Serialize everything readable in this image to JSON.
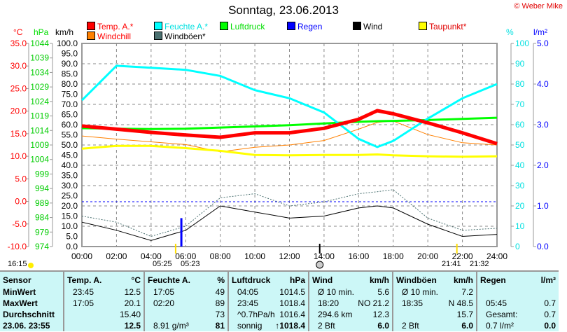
{
  "title": "Sonntag, 23.06.2013",
  "copyright": "© Weber Mike",
  "units": {
    "temp": "°C",
    "press": "hPa",
    "wind": "km/h",
    "hum": "%",
    "rain": "l/m²"
  },
  "legend": [
    {
      "label": "Temp. A.*",
      "color": "#ff0000",
      "text": "#ff0000"
    },
    {
      "label": "Feuchte A.*",
      "color": "#00ffff",
      "text": "#00e0e0"
    },
    {
      "label": "Luftdruck",
      "color": "#00ff00",
      "text": "#00dd00"
    },
    {
      "label": "Regen",
      "color": "#0000ff",
      "text": "#0000ff"
    },
    {
      "label": "Wind",
      "color": "#000000",
      "text": "#000000"
    },
    {
      "label": "Taupunkt*",
      "color": "#ffff00",
      "text": "#e00000"
    },
    {
      "label": "Windchill",
      "color": "#ff8000",
      "text": "#ff0000"
    },
    {
      "label": "Windböen*",
      "color": "#4a7070",
      "text": "#000000"
    }
  ],
  "chart_data": {
    "type": "line",
    "title": "Sonntag, 23.06.2013",
    "x_ticks": [
      "00:00",
      "02:00",
      "04:00",
      "06:00",
      "08:00",
      "10:00",
      "12:00",
      "14:00",
      "16:00",
      "18:00",
      "20:00",
      "22:00",
      "24:00"
    ],
    "axes": {
      "temp": {
        "ticks": [
          "35.0",
          "30.0",
          "25.0",
          "20.0",
          "15.0",
          "10.0",
          "5.0",
          "0.0",
          "-5.0",
          "-10.0"
        ],
        "range": [
          -10,
          35
        ]
      },
      "press": {
        "ticks": [
          "1044",
          "1039",
          "1034",
          "1029",
          "1024",
          "1019",
          "1014",
          "1009",
          "1004",
          "999",
          "994",
          "989",
          "984",
          "979",
          "974"
        ],
        "range": [
          974,
          1044
        ]
      },
      "wind": {
        "ticks": [
          "100.0",
          "95.0",
          "90.0",
          "85.0",
          "80.0",
          "75.0",
          "70.0",
          "65.0",
          "60.0",
          "55.0",
          "50.0",
          "45.0",
          "40.0",
          "35.0",
          "30.0",
          "25.0",
          "20.0",
          "15.0",
          "10.0",
          "5.0",
          "0.0"
        ],
        "range": [
          0,
          100
        ]
      },
      "hum": {
        "ticks": [
          "100",
          "90",
          "80",
          "70",
          "60",
          "50",
          "40",
          "30",
          "20",
          "10",
          "0"
        ],
        "range": [
          0,
          100
        ]
      },
      "rain": {
        "ticks": [
          "5.0",
          "4.0",
          "3.0",
          "2.0",
          "1.0",
          "0.0"
        ],
        "range": [
          0,
          5
        ]
      }
    },
    "hours": [
      0,
      2,
      4,
      6,
      8,
      10,
      12,
      14,
      16,
      17.08,
      18,
      20,
      22,
      24
    ],
    "series": [
      {
        "name": "Temp. A.*",
        "axis": "temp",
        "values": [
          16.7,
          16,
          15.3,
          14.7,
          14.2,
          15.2,
          15.2,
          16.2,
          18.2,
          20.1,
          19.4,
          17.4,
          15.2,
          12.8
        ]
      },
      {
        "name": "Feuchte A.*",
        "axis": "hum",
        "values": [
          72,
          89,
          88,
          87,
          84,
          77,
          73,
          66,
          53,
          49,
          52,
          63,
          73,
          80
        ]
      },
      {
        "name": "Luftdruck",
        "axis": "press",
        "values": [
          1014.8,
          1014.6,
          1014.5,
          1014.6,
          1015,
          1015.4,
          1015.8,
          1016.4,
          1017,
          1017.2,
          1017.3,
          1017.6,
          1018,
          1018.4
        ]
      },
      {
        "name": "Taupunkt*",
        "axis": "temp",
        "values": [
          11.7,
          12.3,
          12.3,
          11.8,
          11.2,
          10.3,
          10.2,
          10.3,
          10.3,
          10.4,
          10.2,
          10,
          9.9,
          10
        ]
      },
      {
        "name": "Windchill",
        "axis": "temp",
        "values": [
          14.5,
          13.8,
          13.2,
          12.6,
          11,
          12,
          12.5,
          13.5,
          16,
          17.5,
          17.8,
          14.8,
          13,
          12.5
        ]
      },
      {
        "name": "Wind",
        "axis": "wind",
        "values": [
          12,
          8,
          3,
          8,
          20,
          17,
          14,
          15,
          19,
          20,
          19,
          11,
          5,
          6
        ]
      },
      {
        "name": "Windböen*",
        "axis": "wind",
        "values": [
          15,
          12,
          5,
          10,
          24,
          26,
          20,
          22,
          26,
          27,
          28,
          14,
          8,
          9
        ]
      }
    ],
    "rain": {
      "time": "05:45",
      "hour": 5.75,
      "value": 0.7
    }
  },
  "markers": {
    "time": "16:15",
    "sunrise": "05:25",
    "sunrise2": "05:23",
    "sunset": "21:41",
    "sunset2": "21:32"
  },
  "table": {
    "cols": [
      {
        "h": [
          "Sensor",
          ""
        ],
        "rows": [
          [
            "MinWert",
            ""
          ],
          [
            "MaxWert",
            ""
          ],
          [
            "Durchschnitt",
            ""
          ],
          [
            "23.06. 23:55",
            ""
          ]
        ]
      },
      {
        "h": [
          "Temp. A.",
          "°C"
        ],
        "rows": [
          [
            "23:45",
            "12.5"
          ],
          [
            "17:05",
            "20.1"
          ],
          [
            "",
            "15.40"
          ],
          [
            "",
            "12.5"
          ]
        ]
      },
      {
        "h": [
          "Feuchte A.",
          "%"
        ],
        "rows": [
          [
            "17:05",
            "49"
          ],
          [
            "02:20",
            "89"
          ],
          [
            "",
            "73"
          ],
          [
            "8.91 g/m³",
            "81"
          ]
        ]
      },
      {
        "h": [
          "Luftdruck",
          "hPa"
        ],
        "rows": [
          [
            "04:05",
            "1014.5"
          ],
          [
            "23:45",
            "1018.4"
          ],
          [
            "^0.7hPa/h",
            "1016.4"
          ],
          [
            "sonnig",
            "↑1018.4"
          ]
        ]
      },
      {
        "h": [
          "Wind",
          "km/h"
        ],
        "rows": [
          [
            "Ø 10 min.",
            "5.6"
          ],
          [
            "18:20",
            "NO 21.2"
          ],
          [
            "294.6 km",
            "12.3"
          ],
          [
            "2 Bft",
            "6.0"
          ]
        ]
      },
      {
        "h": [
          "Windböen",
          "km/h"
        ],
        "rows": [
          [
            "Ø 10 min.",
            "7.2"
          ],
          [
            "18:35",
            "N 48.5"
          ],
          [
            "",
            "15.7"
          ],
          [
            "2 Bft",
            "6.0"
          ]
        ]
      },
      {
        "h": [
          "Regen",
          "l/m²"
        ],
        "rows": [
          [
            "",
            ""
          ],
          [
            "05:45",
            "0.7"
          ],
          [
            "Gesamt:",
            "0.7"
          ],
          [
            "0.7 l/m²",
            "0.0"
          ]
        ]
      }
    ]
  }
}
